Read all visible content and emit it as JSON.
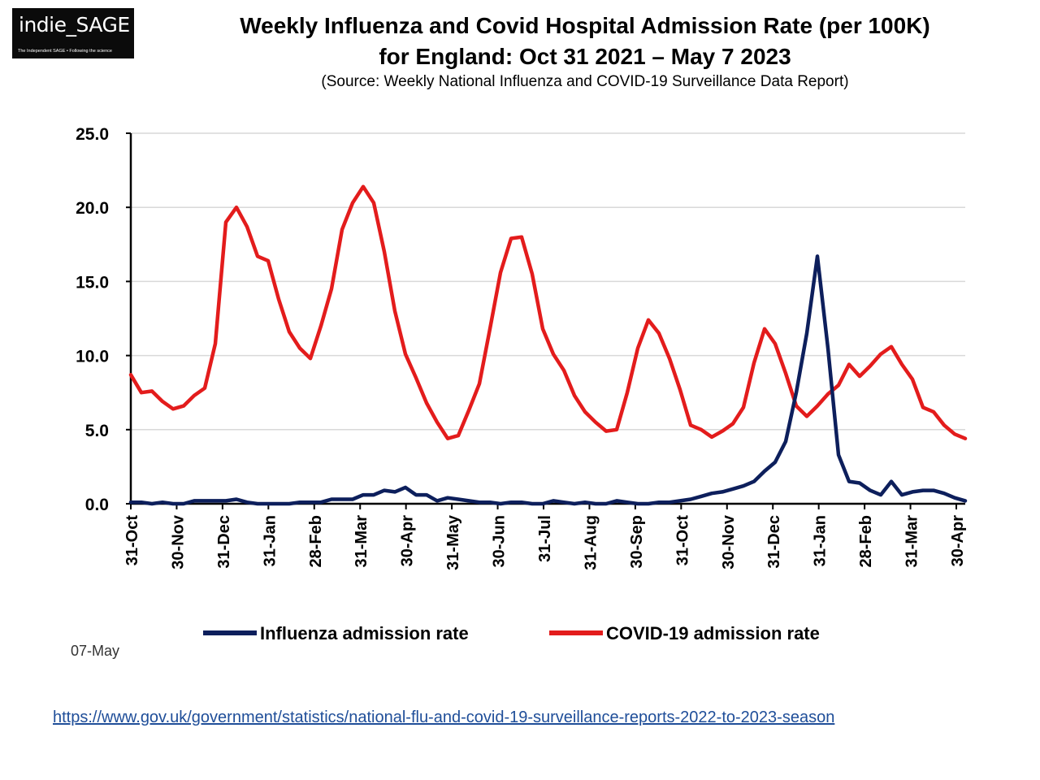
{
  "logo": {
    "name": "indie_SAGE",
    "tagline": "The Independent SAGE • Following the science"
  },
  "header": {
    "title_line1": "Weekly Influenza and Covid Hospital Admission Rate (per 100K)",
    "title_line2": "for England: Oct 31 2021 – May 7 2023",
    "subtitle": "(Source: Weekly National Influenza and COVID-19 Surveillance Data Report)"
  },
  "footnote": "07-May",
  "source_url": "https://www.gov.uk/government/statistics/national-flu-and-covid-19-surveillance-reports-2022-to-2023-season",
  "colors": {
    "influenza": "#0d1f5c",
    "covid": "#e31c1c",
    "grid": "#d9d9d9",
    "axis": "#000000"
  },
  "chart_data": {
    "type": "line",
    "title": "",
    "xlabel": "",
    "ylabel": "",
    "ylim": [
      0,
      25
    ],
    "y_ticks": [
      "0.0",
      "5.0",
      "10.0",
      "15.0",
      "20.0",
      "25.0"
    ],
    "x_tick_labels": [
      "31-Oct",
      "30-Nov",
      "31-Dec",
      "31-Jan",
      "28-Feb",
      "31-Mar",
      "30-Apr",
      "31-May",
      "30-Jun",
      "31-Jul",
      "31-Aug",
      "30-Sep",
      "31-Oct",
      "30-Nov",
      "31-Dec",
      "31-Jan",
      "28-Feb",
      "31-Mar",
      "30-Apr"
    ],
    "grid": "horizontal",
    "legend_position": "bottom",
    "n_weeks": 80,
    "series": [
      {
        "name": "Influenza admission rate",
        "values": [
          0.1,
          0.1,
          0.0,
          0.1,
          0.0,
          0.0,
          0.2,
          0.2,
          0.2,
          0.2,
          0.3,
          0.1,
          0.0,
          0.0,
          0.0,
          0.0,
          0.1,
          0.1,
          0.1,
          0.3,
          0.3,
          0.3,
          0.6,
          0.6,
          0.9,
          0.8,
          1.1,
          0.6,
          0.6,
          0.2,
          0.4,
          0.3,
          0.2,
          0.1,
          0.1,
          0.0,
          0.1,
          0.1,
          0.0,
          0.0,
          0.2,
          0.1,
          0.0,
          0.1,
          0.0,
          0.0,
          0.2,
          0.1,
          0.0,
          0.0,
          0.1,
          0.1,
          0.2,
          0.3,
          0.5,
          0.7,
          0.8,
          1.0,
          1.2,
          1.5,
          2.2,
          2.8,
          4.2,
          7.5,
          11.5,
          16.7,
          10.5,
          3.3,
          1.5,
          1.4,
          0.9,
          0.6,
          1.5,
          0.6,
          0.8,
          0.9,
          0.9,
          0.7,
          0.4,
          0.2
        ]
      },
      {
        "name": "COVID-19 admission rate",
        "values": [
          8.7,
          7.5,
          7.6,
          6.9,
          6.4,
          6.6,
          7.3,
          7.8,
          10.8,
          19.0,
          20.0,
          18.7,
          16.7,
          16.4,
          13.8,
          11.6,
          10.5,
          9.8,
          12.0,
          14.5,
          18.5,
          20.3,
          21.4,
          20.3,
          17.0,
          13.0,
          10.1,
          8.5,
          6.8,
          5.5,
          4.4,
          4.6,
          6.3,
          8.1,
          11.8,
          15.6,
          17.9,
          18.0,
          15.5,
          11.8,
          10.1,
          9.0,
          7.3,
          6.2,
          5.5,
          4.9,
          5.0,
          7.5,
          10.5,
          12.4,
          11.5,
          9.8,
          7.7,
          5.3,
          5.0,
          4.5,
          4.9,
          5.4,
          6.5,
          9.5,
          11.8,
          10.8,
          8.8,
          6.6,
          5.9,
          6.6,
          7.4,
          8.0,
          9.4,
          8.6,
          9.3,
          10.1,
          10.6,
          9.4,
          8.4,
          6.5,
          6.2,
          5.3,
          4.7,
          4.4
        ]
      }
    ]
  }
}
